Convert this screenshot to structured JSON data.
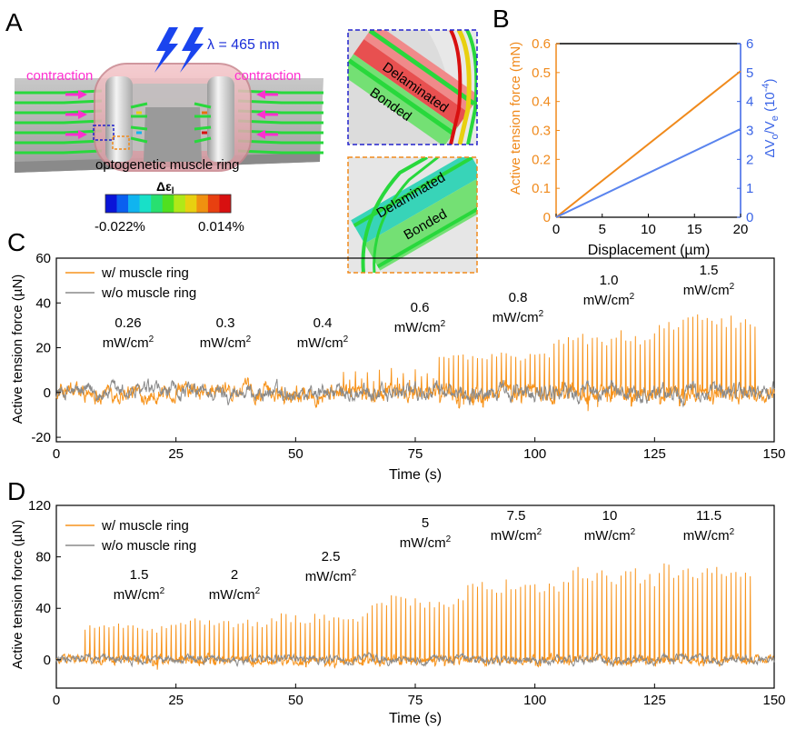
{
  "panel_a": {
    "letter": "A",
    "wavelength_label": "λ = 465 nm",
    "contraction_left": "contraction",
    "contraction_right": "contraction",
    "ring_label": "optogenetic muscle ring",
    "colorbar_title": "Δε",
    "colorbar_title_sub": "l",
    "colorbar_min": "-0.022%",
    "colorbar_max": "0.014%",
    "colorbar_colors": [
      "#0a14d8",
      "#0a60f0",
      "#10b4f0",
      "#18e0c8",
      "#28e070",
      "#50e020",
      "#b0e818",
      "#e8d010",
      "#f09010",
      "#e84010",
      "#d81010"
    ],
    "inset_top_delaminated": "Delaminated",
    "inset_top_bonded": "Bonded",
    "inset_bottom_delaminated": "Delaminated",
    "inset_bottom_bonded": "Bonded",
    "colors": {
      "magenta": "#ff2fd0",
      "blue_dash": "#2222cc",
      "orange_dash": "#f08a1c",
      "lightning": "#1a44ee",
      "stripe_green": "#28d83c"
    }
  },
  "chart_data": [
    {
      "panel": "B",
      "type": "line",
      "xlabel": "Displacement (µm)",
      "ylabel_left": "Active tension force (mN)",
      "ylabel_right": "ΔV",
      "ylabel_right_parts": [
        "ΔV",
        "o",
        "/V",
        "e",
        " (10",
        "-4",
        ")"
      ],
      "xlim": [
        0,
        20
      ],
      "ylim_left": [
        0,
        0.6
      ],
      "ylim_right": [
        0,
        6
      ],
      "xticks": [
        0,
        5,
        10,
        15,
        20
      ],
      "yticks_left": [
        "0",
        "0.1",
        "0.2",
        "0.3",
        "0.4",
        "0.5",
        "0.6"
      ],
      "yticks_right": [
        "0",
        "1",
        "2",
        "3",
        "4",
        "5",
        "6"
      ],
      "series": [
        {
          "axis": "left",
          "color": "#f08a1c",
          "x": [
            0,
            20
          ],
          "y": [
            0,
            0.505
          ]
        },
        {
          "axis": "right",
          "color": "#5a84ee",
          "x": [
            0,
            20
          ],
          "y": [
            0,
            3.05
          ]
        }
      ],
      "left_color": "#f08a1c",
      "right_color": "#3a64e6"
    },
    {
      "panel": "C",
      "type": "line",
      "xlabel": "Time (s)",
      "ylabel": "Active tension force (µN)",
      "xlim": [
        0,
        150
      ],
      "ylim": [
        -22,
        60
      ],
      "xticks": [
        0,
        25,
        50,
        75,
        100,
        125,
        150
      ],
      "yticks": [
        -20,
        0,
        20,
        40,
        60
      ],
      "series": [
        {
          "name": "w/ muscle ring",
          "color": "#f7941d"
        },
        {
          "name": "w/o muscle ring",
          "color": "#8a8a8a"
        }
      ],
      "segments": [
        {
          "label": "0.26",
          "unit": "mW/cm",
          "t0": 0,
          "t1": 20,
          "peak": 0,
          "rate": 0
        },
        {
          "label": "0.3",
          "unit": "mW/cm",
          "t0": 20,
          "t1": 40,
          "peak": 0,
          "rate": 0
        },
        {
          "label": "0.4",
          "unit": "mW/cm",
          "t0": 40,
          "t1": 60,
          "peak": 0,
          "rate": 0
        },
        {
          "label": "0.6",
          "unit": "mW/cm",
          "t0": 60,
          "t1": 80,
          "peak": 10,
          "rate": 0.8
        },
        {
          "label": "0.8",
          "unit": "mW/cm",
          "t0": 80,
          "t1": 104,
          "peak": 17,
          "rate": 1.0
        },
        {
          "label": "1.0",
          "unit": "mW/cm",
          "t0": 104,
          "t1": 126,
          "peak": 25,
          "rate": 1.0
        },
        {
          "label": "1.5",
          "unit": "mW/cm",
          "t0": 126,
          "t1": 147,
          "peak": 33,
          "rate": 1.0
        }
      ],
      "noise_amplitude": 4.5,
      "baseline": 0
    },
    {
      "panel": "D",
      "type": "line",
      "xlabel": "Time (s)",
      "ylabel": "Active tension force (µN)",
      "xlim": [
        0,
        150
      ],
      "ylim": [
        -22,
        120
      ],
      "xticks": [
        0,
        25,
        50,
        75,
        100,
        125,
        150
      ],
      "yticks": [
        0,
        40,
        80,
        120
      ],
      "series": [
        {
          "name": "w/ muscle ring",
          "color": "#f7941d"
        },
        {
          "name": "w/o muscle ring",
          "color": "#8a8a8a"
        }
      ],
      "segments": [
        {
          "label": "1.5",
          "unit": "mW/cm",
          "t0": 6,
          "t1": 26,
          "peak": 26,
          "rate": 1.0
        },
        {
          "label": "2",
          "unit": "mW/cm",
          "t0": 26,
          "t1": 45,
          "peak": 30,
          "rate": 1.0
        },
        {
          "label": "2.5",
          "unit": "mW/cm",
          "t0": 45,
          "t1": 66,
          "peak": 34,
          "rate": 1.0
        },
        {
          "label": "5",
          "unit": "mW/cm",
          "t0": 66,
          "t1": 86,
          "peak": 48,
          "rate": 1.0
        },
        {
          "label": "7.5",
          "unit": "mW/cm",
          "t0": 86,
          "t1": 106,
          "peak": 60,
          "rate": 1.0
        },
        {
          "label": "10",
          "unit": "mW/cm",
          "t0": 106,
          "t1": 126,
          "peak": 68,
          "rate": 1.0
        },
        {
          "label": "11.5",
          "unit": "mW/cm",
          "t0": 126,
          "t1": 146,
          "peak": 72,
          "rate": 1.0
        }
      ],
      "noise_amplitude": 4.0,
      "baseline": 0
    }
  ]
}
